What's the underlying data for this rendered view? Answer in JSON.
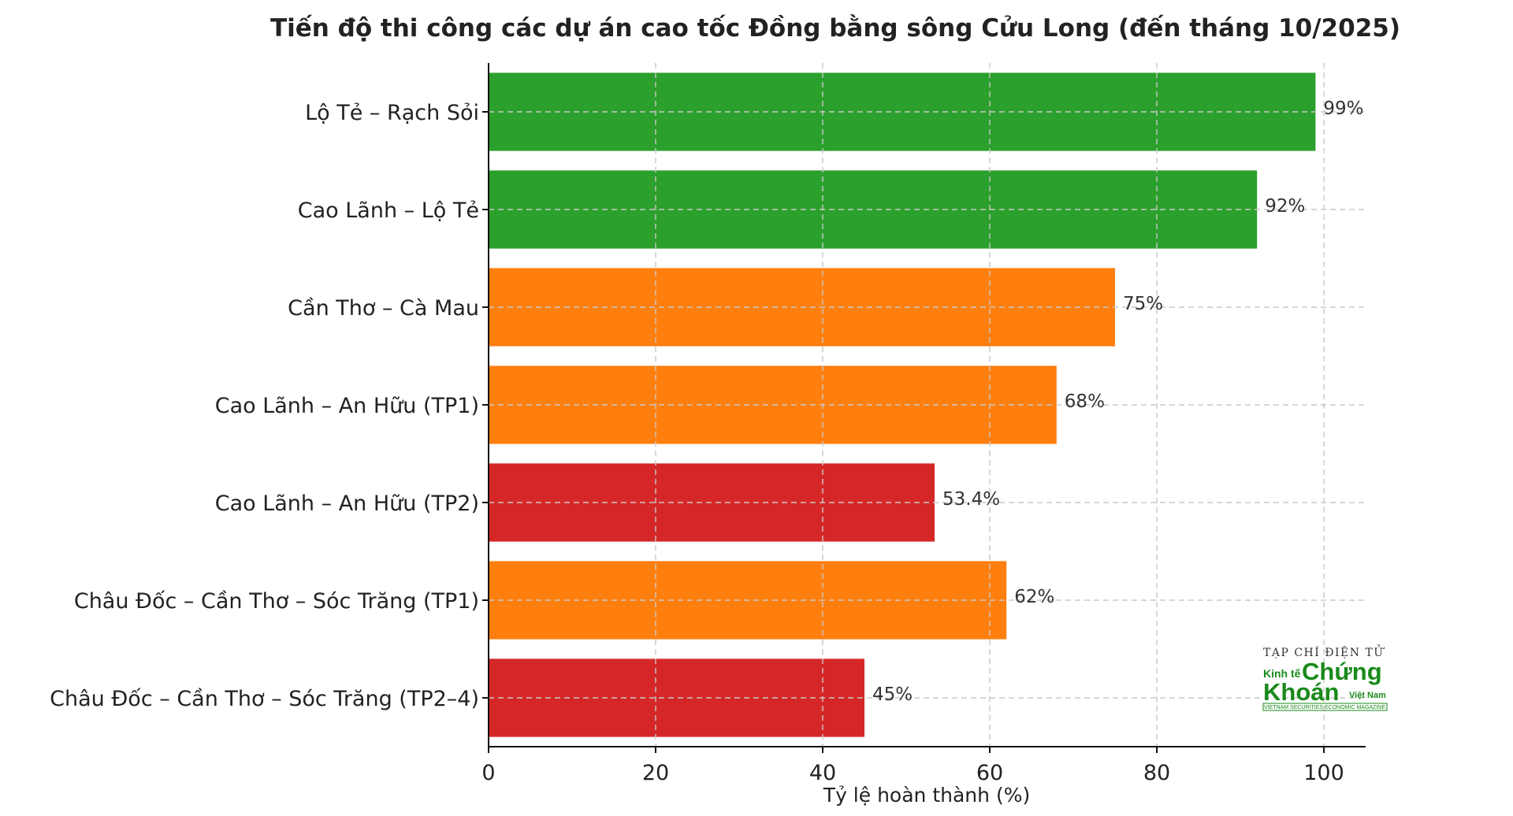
{
  "chart_data": {
    "type": "bar",
    "orientation": "horizontal",
    "title": "Tiến độ thi công các dự án cao tốc Đồng bằng sông Cửu Long (đến tháng 10/2025)",
    "xlabel": "Tỷ lệ hoàn thành (%)",
    "ylabel": "",
    "xlim": [
      0,
      105
    ],
    "xticks": [
      "0",
      "20",
      "40",
      "60",
      "80",
      "100"
    ],
    "grid": true,
    "categories": [
      "Lộ Tẻ – Rạch Sỏi",
      "Cao Lãnh – Lộ Tẻ",
      "Cần Thơ – Cà Mau",
      "Cao Lãnh – An Hữu (TP1)",
      "Cao Lãnh – An Hữu (TP2)",
      "Châu Đốc – Cần Thơ – Sóc Trăng (TP1)",
      "Châu Đốc – Cần Thơ – Sóc Trăng (TP2–4)"
    ],
    "values": [
      99,
      92,
      75,
      68,
      53.4,
      62,
      45
    ],
    "value_labels": [
      "99%",
      "92%",
      "75%",
      "68%",
      "53.4%",
      "62%",
      "45%"
    ],
    "bar_colors": [
      "#2ca02c",
      "#2ca02c",
      "#ff7f0e",
      "#ff7f0e",
      "#d62728",
      "#ff7f0e",
      "#d62728"
    ]
  },
  "watermark": {
    "line1": "TẠP CHÍ ĐIỆN TỬ",
    "kinh_te": "Kinh tế",
    "chung": "Chứng",
    "khoan": "Khoán",
    "viet_nam": "Việt Nam",
    "tagline": "VIETNAM SECURITIES ECONOMIC MAGAZINE",
    "color": "#1a8a1a"
  }
}
